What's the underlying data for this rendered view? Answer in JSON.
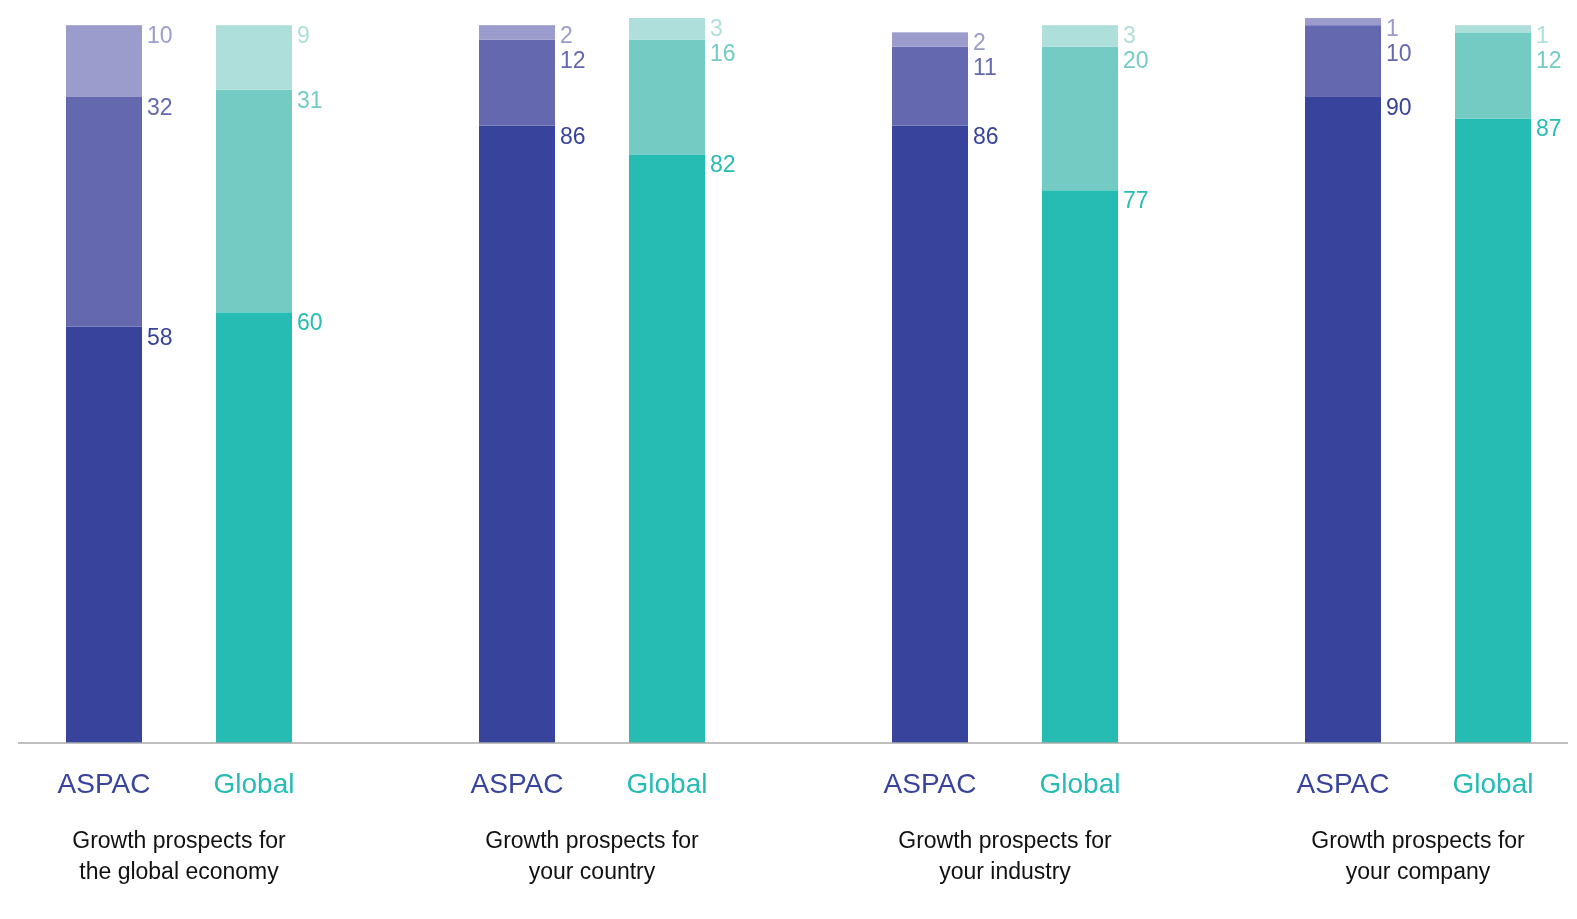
{
  "chart_data": {
    "type": "bar",
    "stacked": true,
    "data_labels": true,
    "categories": [
      "ASPAC",
      "Global",
      "ASPAC",
      "Global",
      "ASPAC",
      "Global",
      "ASPAC",
      "Global"
    ],
    "series": [
      {
        "values": [
          58,
          60,
          86,
          82,
          86,
          77,
          90,
          87
        ],
        "colors": [
          "#38439b",
          "#26bbb3",
          "#38439b",
          "#26bbb3",
          "#38439b",
          "#26bbb3",
          "#38439b",
          "#26bbb3"
        ]
      },
      {
        "values": [
          32,
          31,
          12,
          16,
          11,
          20,
          10,
          12
        ],
        "colors": [
          "#6468ae",
          "#73cbc4",
          "#6468ae",
          "#73cbc4",
          "#6468ae",
          "#73cbc4",
          "#6468ae",
          "#73cbc4"
        ]
      },
      {
        "values": [
          10,
          9,
          2,
          3,
          2,
          3,
          1,
          1
        ],
        "colors": [
          "#9b9ccc",
          "#aedfdb",
          "#9b9ccc",
          "#aedfdb",
          "#9b9ccc",
          "#aedfdb",
          "#9b9ccc",
          "#aedfdb"
        ]
      }
    ],
    "annotations": [
      "Growth prospects for the global economy",
      "Growth prospects for your country",
      "Growth prospects for your industry",
      "Growth prospects for your company"
    ]
  }
}
